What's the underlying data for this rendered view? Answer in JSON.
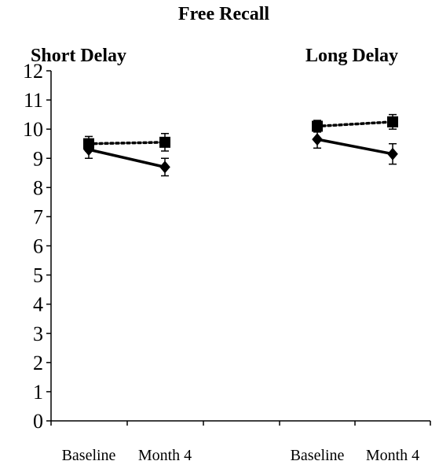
{
  "chart_data": {
    "type": "line",
    "title": "Free Recall",
    "ylim": [
      0,
      12
    ],
    "yticks": [
      "0",
      "1",
      "2",
      "3",
      "4",
      "5",
      "6",
      "7",
      "8",
      "9",
      "10",
      "11",
      "12"
    ],
    "grid": false,
    "legend": "none",
    "panels": [
      {
        "label": "Short Delay",
        "categories": [
          "Baseline",
          "Month 4"
        ],
        "series": [
          {
            "style": "dotted",
            "marker": "square",
            "color": "#000000",
            "values": [
              9.5,
              9.55
            ],
            "errors": [
              0.25,
              0.3
            ]
          },
          {
            "style": "solid",
            "marker": "diamond",
            "color": "#000000",
            "values": [
              9.3,
              8.7
            ],
            "errors": [
              0.3,
              0.3
            ]
          }
        ]
      },
      {
        "label": "Long Delay",
        "categories": [
          "Baseline",
          "Month 4"
        ],
        "series": [
          {
            "style": "dotted",
            "marker": "square",
            "color": "#000000",
            "values": [
              10.1,
              10.25
            ],
            "errors": [
              0.2,
              0.25
            ]
          },
          {
            "style": "solid",
            "marker": "diamond",
            "color": "#000000",
            "values": [
              9.65,
              9.15
            ],
            "errors": [
              0.3,
              0.35
            ]
          }
        ]
      }
    ]
  }
}
